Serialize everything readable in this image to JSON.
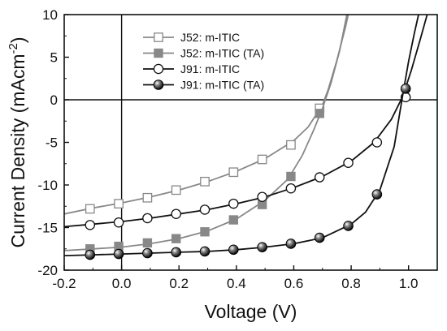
{
  "chart_data": {
    "type": "line",
    "xlabel": "Voltage (V)",
    "ylabel_main": "Current Density (mAcm",
    "ylabel_sup": "-2",
    "ylabel_close": ")",
    "xlim": [
      -0.2,
      1.1
    ],
    "ylim": [
      -20,
      10
    ],
    "xticks": [
      -0.2,
      0.0,
      0.2,
      0.4,
      0.6,
      0.8,
      1.0
    ],
    "xtick_labels": [
      "-0.2",
      "0.0",
      "0.2",
      "0.4",
      "0.6",
      "0.8",
      "1.0"
    ],
    "yticks": [
      -20,
      -15,
      -10,
      -5,
      0,
      5,
      10
    ],
    "ytick_labels": [
      "-20",
      "-15",
      "-10",
      "-5",
      "0",
      "5",
      "10"
    ],
    "reference_lines": {
      "x": 0,
      "y": 0
    },
    "legend_position": "top-left",
    "series": [
      {
        "name": "J52: m-ITIC",
        "line_color": "#888888",
        "marker": "open-square",
        "curve": [
          [
            -0.2,
            -13.4
          ],
          [
            -0.1,
            -12.7
          ],
          [
            0.0,
            -12.1
          ],
          [
            0.1,
            -11.4
          ],
          [
            0.2,
            -10.6
          ],
          [
            0.3,
            -9.6
          ],
          [
            0.4,
            -8.4
          ],
          [
            0.5,
            -6.9
          ],
          [
            0.6,
            -4.8
          ],
          [
            0.65,
            -3.2
          ],
          [
            0.7,
            -0.6
          ],
          [
            0.72,
            1.2
          ],
          [
            0.75,
            4.6
          ],
          [
            0.78,
            8.5
          ],
          [
            0.79,
            10
          ]
        ],
        "markers": [
          [
            -0.11,
            -12.8
          ],
          [
            -0.01,
            -12.2
          ],
          [
            0.09,
            -11.5
          ],
          [
            0.19,
            -10.6
          ],
          [
            0.29,
            -9.6
          ],
          [
            0.39,
            -8.5
          ],
          [
            0.49,
            -7.0
          ],
          [
            0.59,
            -5.3
          ],
          [
            0.69,
            -1.0
          ]
        ]
      },
      {
        "name": "J52: m-ITIC (TA)",
        "line_color": "#888888",
        "marker": "filled-square",
        "curve": [
          [
            -0.2,
            -17.7
          ],
          [
            -0.1,
            -17.5
          ],
          [
            0.0,
            -17.3
          ],
          [
            0.1,
            -16.9
          ],
          [
            0.2,
            -16.3
          ],
          [
            0.3,
            -15.4
          ],
          [
            0.4,
            -14.0
          ],
          [
            0.5,
            -11.8
          ],
          [
            0.58,
            -9.3
          ],
          [
            0.63,
            -6.5
          ],
          [
            0.67,
            -3.5
          ],
          [
            0.7,
            -1.0
          ],
          [
            0.73,
            2.0
          ],
          [
            0.76,
            5.8
          ],
          [
            0.785,
            10
          ]
        ],
        "markers": [
          [
            -0.11,
            -17.5
          ],
          [
            -0.01,
            -17.2
          ],
          [
            0.09,
            -16.8
          ],
          [
            0.19,
            -16.3
          ],
          [
            0.29,
            -15.5
          ],
          [
            0.39,
            -14.1
          ],
          [
            0.49,
            -12.3
          ],
          [
            0.59,
            -9.0
          ],
          [
            0.69,
            -1.6
          ]
        ]
      },
      {
        "name": "J91: m-ITIC",
        "line_color": "#111111",
        "marker": "open-circle",
        "curve": [
          [
            -0.2,
            -14.9
          ],
          [
            -0.1,
            -14.6
          ],
          [
            0.0,
            -14.3
          ],
          [
            0.1,
            -13.9
          ],
          [
            0.2,
            -13.4
          ],
          [
            0.3,
            -12.9
          ],
          [
            0.4,
            -12.2
          ],
          [
            0.5,
            -11.4
          ],
          [
            0.6,
            -10.3
          ],
          [
            0.7,
            -9.0
          ],
          [
            0.8,
            -7.2
          ],
          [
            0.88,
            -5.0
          ],
          [
            0.94,
            -2.3
          ],
          [
            0.98,
            0.4
          ],
          [
            1.01,
            3.5
          ],
          [
            1.04,
            7.0
          ],
          [
            1.065,
            10
          ]
        ],
        "markers": [
          [
            -0.11,
            -14.7
          ],
          [
            -0.01,
            -14.4
          ],
          [
            0.09,
            -13.9
          ],
          [
            0.19,
            -13.4
          ],
          [
            0.29,
            -12.9
          ],
          [
            0.39,
            -12.2
          ],
          [
            0.49,
            -11.4
          ],
          [
            0.59,
            -10.4
          ],
          [
            0.69,
            -9.1
          ],
          [
            0.79,
            -7.4
          ],
          [
            0.89,
            -5.0
          ],
          [
            0.99,
            0.3
          ]
        ]
      },
      {
        "name": "J91: m-ITIC (TA)",
        "line_color": "#111111",
        "marker": "filled-circle",
        "curve": [
          [
            -0.2,
            -18.3
          ],
          [
            -0.1,
            -18.2
          ],
          [
            0.0,
            -18.1
          ],
          [
            0.1,
            -18.0
          ],
          [
            0.2,
            -17.9
          ],
          [
            0.3,
            -17.8
          ],
          [
            0.4,
            -17.6
          ],
          [
            0.5,
            -17.3
          ],
          [
            0.6,
            -16.9
          ],
          [
            0.7,
            -16.2
          ],
          [
            0.8,
            -14.6
          ],
          [
            0.85,
            -13.2
          ],
          [
            0.9,
            -10.6
          ],
          [
            0.95,
            -5.5
          ],
          [
            0.98,
            0.6
          ],
          [
            1.0,
            4.5
          ],
          [
            1.02,
            7.8
          ],
          [
            1.035,
            10
          ]
        ],
        "markers": [
          [
            -0.11,
            -18.2
          ],
          [
            -0.01,
            -18.1
          ],
          [
            0.09,
            -18.0
          ],
          [
            0.19,
            -17.9
          ],
          [
            0.29,
            -17.8
          ],
          [
            0.39,
            -17.6
          ],
          [
            0.49,
            -17.3
          ],
          [
            0.59,
            -16.9
          ],
          [
            0.69,
            -16.2
          ],
          [
            0.79,
            -14.8
          ],
          [
            0.89,
            -11.1
          ],
          [
            0.99,
            1.3
          ]
        ]
      }
    ]
  }
}
